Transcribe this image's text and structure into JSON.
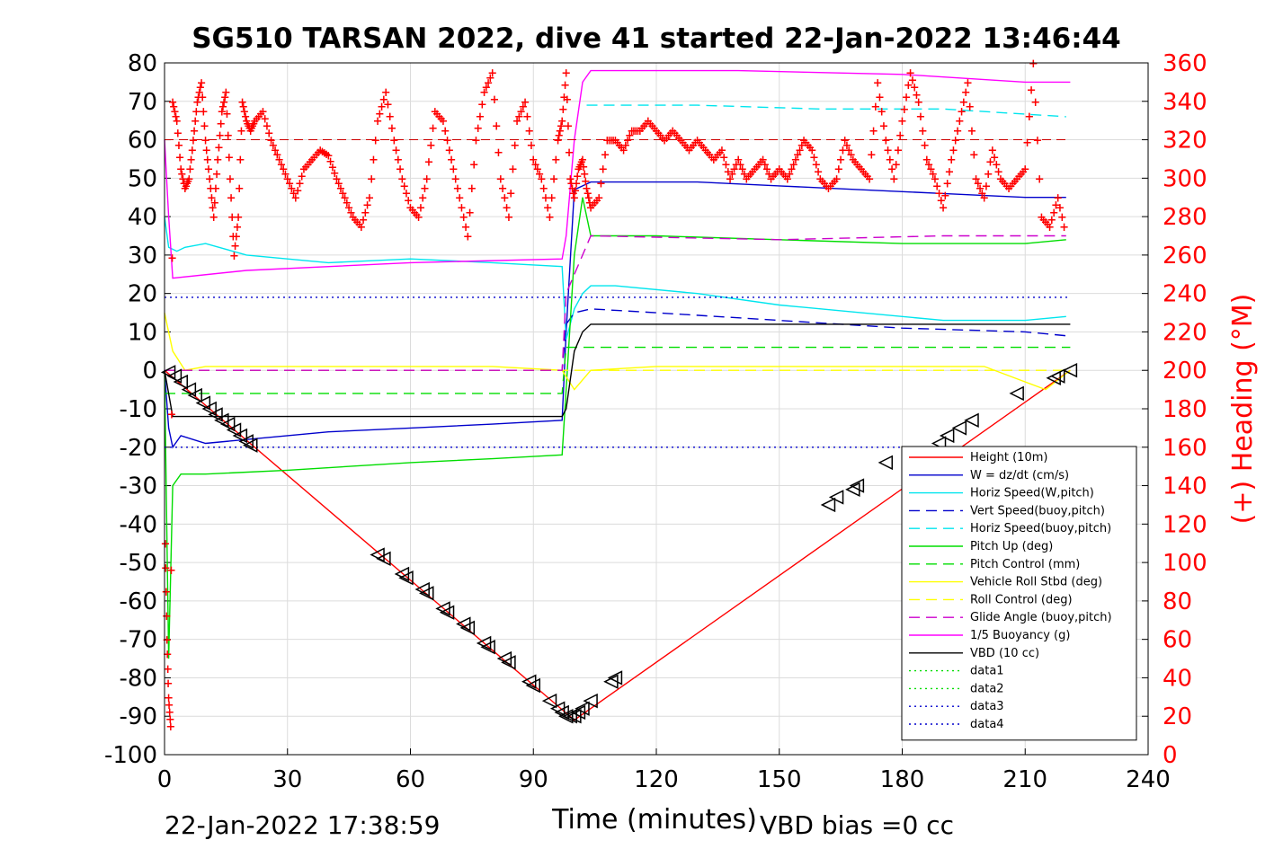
{
  "chart_data": {
    "type": "line",
    "title": "SG510 TARSAN 2022, dive 41 started 22-Jan-2022 13:46:44",
    "xlabel": "Time (minutes)",
    "ylabel_right": "(+) Heading (°M)",
    "footer_left": "22-Jan-2022 17:38:59",
    "footer_right": "VBD bias =0 cc",
    "xlim": [
      0,
      240
    ],
    "ylim_left": [
      -100,
      80
    ],
    "ylim_right": [
      0,
      360
    ],
    "x_ticks": [
      "0",
      "30",
      "60",
      "90",
      "120",
      "150",
      "180",
      "210",
      "240"
    ],
    "y_left_ticks": [
      "80",
      "70",
      "60",
      "50",
      "40",
      "30",
      "20",
      "10",
      "0",
      "-10",
      "-20",
      "-30",
      "-40",
      "-50",
      "-60",
      "-70",
      "-80",
      "-90",
      "-100"
    ],
    "y_right_ticks": [
      "360",
      "340",
      "320",
      "300",
      "280",
      "260",
      "240",
      "220",
      "200",
      "180",
      "160",
      "140",
      "120",
      "100",
      "80",
      "60",
      "40",
      "20",
      "0"
    ],
    "grid": true,
    "legend_placement": "lower-right",
    "colors": {
      "height": "#ff0000",
      "w": "#0000cc",
      "horiz": "#00e5ee",
      "pitch": "#00dd00",
      "roll": "#ffff00",
      "glide": "#cc00cc",
      "buoy": "#ff00ff",
      "vbd": "#000000",
      "heading": "#ff0000"
    },
    "series": [
      {
        "name": "Height (10m)",
        "color": "#ff0000",
        "dash": "solid",
        "x": [
          0,
          100,
          221
        ],
        "y": [
          0,
          -91,
          0
        ]
      },
      {
        "name": "W = dz/dt (cm/s)",
        "color": "#0000cc",
        "dash": "solid",
        "x": [
          0,
          1,
          2,
          4,
          10,
          20,
          40,
          60,
          80,
          97,
          98,
          100,
          102,
          104,
          110,
          130,
          150,
          170,
          190,
          210,
          220
        ],
        "y": [
          0,
          -15,
          -20,
          -17,
          -19,
          -18,
          -16,
          -15,
          -14,
          -13,
          10,
          47,
          48,
          49,
          49,
          49,
          48,
          47,
          46,
          45,
          45
        ]
      },
      {
        "name": "Horiz Speed(W,pitch)",
        "color": "#00e5ee",
        "dash": "solid",
        "x": [
          0,
          1,
          3,
          5,
          10,
          20,
          40,
          60,
          80,
          97,
          98,
          100,
          102,
          104,
          110,
          130,
          150,
          170,
          190,
          210,
          220
        ],
        "y": [
          40,
          32,
          31,
          32,
          33,
          30,
          28,
          29,
          28,
          27,
          8,
          16,
          20,
          22,
          22,
          20,
          17,
          15,
          13,
          13,
          14
        ]
      },
      {
        "name": "Vert Speed(buoy,pitch)",
        "color": "#0000cc",
        "dash": "dash",
        "x": [
          0,
          97,
          98,
          100,
          104,
          120,
          150,
          180,
          210,
          220
        ],
        "y": [
          0,
          0,
          12,
          15,
          16,
          15,
          13,
          11,
          10,
          9
        ]
      },
      {
        "name": "Horiz Speed(buoy,pitch)",
        "color": "#00e5ee",
        "dash": "dash",
        "x": [
          103,
          130,
          160,
          190,
          220
        ],
        "y": [
          69,
          69,
          68,
          68,
          66
        ]
      },
      {
        "name": "Pitch Up (deg)",
        "color": "#00dd00",
        "dash": "solid",
        "x": [
          0,
          1,
          2,
          4,
          10,
          30,
          60,
          80,
          97,
          98,
          100,
          102,
          104,
          120,
          150,
          180,
          210,
          220
        ],
        "y": [
          0,
          -75,
          -30,
          -27,
          -27,
          -26,
          -24,
          -23,
          -22,
          -5,
          30,
          45,
          35,
          35,
          34,
          33,
          33,
          34
        ]
      },
      {
        "name": "Pitch Control (mm)",
        "color": "#00dd00",
        "dash": "dash",
        "x": [
          0,
          97,
          98,
          104,
          221
        ],
        "y": [
          -6,
          -6,
          6,
          6,
          6
        ]
      },
      {
        "name": "Vehicle Roll Stbd (deg)",
        "color": "#ffff00",
        "dash": "solid",
        "x": [
          0,
          2,
          5,
          10,
          40,
          80,
          97,
          100,
          104,
          120,
          160,
          200,
          215,
          221
        ],
        "y": [
          15,
          5,
          0,
          1,
          1,
          1,
          0,
          -5,
          0,
          1,
          1,
          1,
          -5,
          0
        ]
      },
      {
        "name": "Roll Control (deg)",
        "color": "#ffff00",
        "dash": "dash",
        "x": [
          0,
          221
        ],
        "y": [
          0,
          0
        ]
      },
      {
        "name": "Glide Angle (buoy,pitch)",
        "color": "#cc00cc",
        "dash": "dash",
        "x": [
          0,
          97,
          98,
          104,
          150,
          190,
          220
        ],
        "y": [
          0,
          0,
          20,
          35,
          34,
          35,
          35
        ]
      },
      {
        "name": "1/5 Buoyancy (g)",
        "color": "#ff00ff",
        "dash": "solid",
        "x": [
          0,
          1,
          2,
          20,
          60,
          97,
          98,
          100,
          102,
          104,
          140,
          180,
          210,
          221
        ],
        "y": [
          60,
          40,
          24,
          26,
          28,
          29,
          35,
          60,
          75,
          78,
          78,
          77,
          75,
          75
        ]
      },
      {
        "name": "VBD (10 cc)",
        "color": "#000000",
        "dash": "solid",
        "x": [
          0,
          2,
          97,
          98,
          100,
          102,
          104,
          221
        ],
        "y": [
          0,
          -12,
          -12,
          -10,
          5,
          10,
          12,
          12
        ]
      },
      {
        "name": "data1",
        "color": "#00dd00",
        "dash": "dot",
        "x": [],
        "y": []
      },
      {
        "name": "data2",
        "color": "#00dd00",
        "dash": "dot",
        "x": [],
        "y": []
      },
      {
        "name": "data3",
        "color": "#0000cc",
        "dash": "dot",
        "x": [
          0,
          221
        ],
        "y": [
          -20,
          -20
        ]
      },
      {
        "name": "data4",
        "color": "#0000cc",
        "dash": "dot",
        "x": [
          0,
          221
        ],
        "y": [
          19,
          19
        ]
      }
    ],
    "heading_series": {
      "color": "#ff0000",
      "marker": "+",
      "target_heading": 320,
      "x": [
        0.2,
        0.6,
        1,
        1.5,
        2,
        3,
        4,
        5,
        6,
        7,
        8,
        9,
        10,
        11,
        12,
        13,
        14,
        15,
        16,
        17,
        18,
        19,
        20,
        21,
        22,
        24,
        26,
        28,
        30,
        32,
        34,
        36,
        38,
        40,
        42,
        44,
        46,
        48,
        50,
        52,
        54,
        56,
        58,
        60,
        62,
        64,
        66,
        68,
        70,
        72,
        74,
        76,
        78,
        80,
        82,
        84,
        86,
        88,
        90,
        92,
        94,
        96,
        97,
        98,
        99,
        100,
        101,
        102,
        103,
        104,
        106,
        108,
        110,
        112,
        114,
        116,
        118,
        120,
        122,
        124,
        126,
        128,
        130,
        132,
        134,
        136,
        138,
        140,
        142,
        144,
        146,
        148,
        150,
        152,
        154,
        156,
        158,
        160,
        162,
        164,
        166,
        168,
        170,
        172,
        174,
        176,
        178,
        180,
        182,
        184,
        186,
        188,
        190,
        192,
        194,
        196,
        198,
        200,
        202,
        204,
        206,
        208,
        210,
        212,
        214,
        216,
        218,
        220
      ],
      "y": [
        110,
        60,
        30,
        15,
        340,
        330,
        305,
        295,
        300,
        320,
        340,
        350,
        320,
        300,
        280,
        310,
        335,
        345,
        300,
        260,
        280,
        340,
        330,
        325,
        330,
        335,
        320,
        310,
        300,
        290,
        305,
        310,
        315,
        312,
        300,
        290,
        280,
        275,
        290,
        330,
        345,
        320,
        300,
        285,
        280,
        300,
        335,
        330,
        310,
        290,
        270,
        320,
        345,
        355,
        300,
        280,
        330,
        340,
        310,
        300,
        280,
        320,
        330,
        355,
        300,
        290,
        305,
        310,
        295,
        285,
        290,
        320,
        320,
        315,
        325,
        325,
        330,
        325,
        320,
        325,
        320,
        315,
        320,
        315,
        310,
        315,
        300,
        310,
        300,
        305,
        310,
        300,
        305,
        300,
        310,
        320,
        315,
        300,
        295,
        300,
        320,
        310,
        305,
        300,
        350,
        320,
        300,
        330,
        355,
        340,
        310,
        300,
        285,
        310,
        330,
        350,
        300,
        290,
        315,
        300,
        295,
        300,
        305,
        360,
        280,
        275,
        290,
        270
      ]
    },
    "markers": {
      "symbol": "triangle-left",
      "color": "#000000",
      "x": [
        1,
        2.5,
        4,
        6,
        7.5,
        9.5,
        11,
        12.5,
        14,
        15.5,
        17,
        18.5,
        20,
        21,
        52,
        53.5,
        58,
        59,
        63,
        64,
        68,
        69,
        73,
        74,
        78,
        79,
        83,
        84,
        89,
        90,
        94,
        96,
        97,
        98,
        99,
        100,
        101,
        102,
        104,
        109,
        110,
        162,
        164,
        168,
        169,
        176,
        189,
        191,
        194,
        197,
        208,
        217,
        218,
        221
      ],
      "y": [
        -0.5,
        -1.5,
        -3,
        -5,
        -6.5,
        -8.5,
        -10,
        -11.5,
        -13,
        -14,
        -15.5,
        -17,
        -18.5,
        -19.5,
        -48,
        -49,
        -53,
        -54,
        -57,
        -58,
        -62,
        -63,
        -66,
        -67,
        -71,
        -72,
        -75,
        -76,
        -81,
        -82,
        -86,
        -88,
        -89,
        -90,
        -90,
        -90,
        -89,
        -88,
        -86,
        -81,
        -80,
        -35,
        -33,
        -31,
        -30,
        -24,
        -19,
        -17,
        -15,
        -13,
        -6,
        -2,
        -1.5,
        0
      ]
    }
  }
}
